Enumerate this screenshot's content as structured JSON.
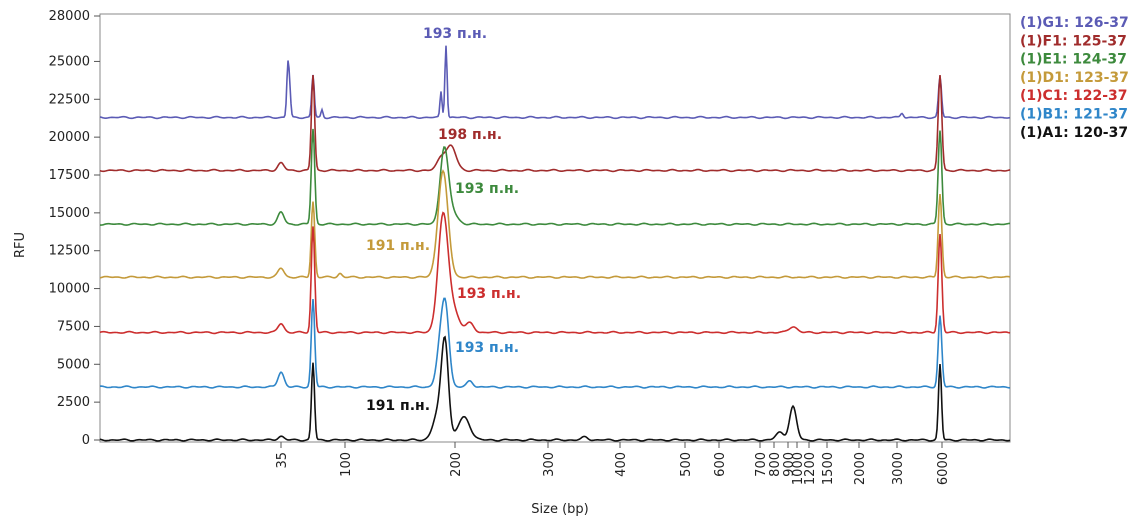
{
  "chart_data": {
    "type": "line",
    "title": "",
    "xlabel": "Size (bp)",
    "ylabel": "RFU",
    "ylim": [
      0,
      28000
    ],
    "yticks": [
      "0",
      "2500",
      "5000",
      "7500",
      "10000",
      "12500",
      "15000",
      "17500",
      "20000",
      "22500",
      "25000",
      "28000"
    ],
    "xticks": [
      "35",
      "100",
      "200",
      "300",
      "400",
      "500",
      "600",
      "700",
      "800",
      "900",
      "1000",
      "1200",
      "1500",
      "2000",
      "3000",
      "6000"
    ],
    "legend_position": "right",
    "series": [
      {
        "name": "(1)G1: 126-37",
        "color": "#5b5bb5",
        "baseline": 21300,
        "peak_label": "193 п.н."
      },
      {
        "name": "(1)F1: 125-37",
        "color": "#a02c2c",
        "baseline": 17800,
        "peak_label": "198 п.н."
      },
      {
        "name": "(1)E1: 124-37",
        "color": "#3d8a3d",
        "baseline": 14250,
        "peak_label": "193 п.н."
      },
      {
        "name": "(1)D1: 123-37",
        "color": "#c49a3a",
        "baseline": 10750,
        "peak_label": "191 п.н."
      },
      {
        "name": "(1)C1: 122-37",
        "color": "#cc2e2e",
        "baseline": 7100,
        "peak_label": "193 п.н."
      },
      {
        "name": "(1)B1: 121-37",
        "color": "#2f86c9",
        "baseline": 3500,
        "peak_label": "193 п.н."
      },
      {
        "name": "(1)A1: 120-37",
        "color": "#111111",
        "baseline": 0,
        "peak_label": "191 п.н."
      }
    ]
  }
}
